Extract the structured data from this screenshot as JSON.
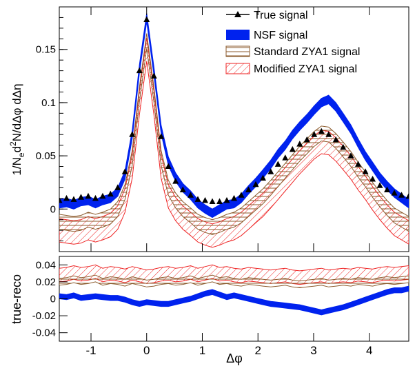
{
  "chart_data": [
    {
      "type": "line",
      "xlabel": "Δφ",
      "ylabel": "1/N_e d²N/dΔφ dΔη",
      "xlim": [
        -1.57,
        4.71
      ],
      "ylim": [
        -0.04,
        0.19
      ],
      "yticks": [
        "0",
        "0.05",
        "0.1",
        "0.15"
      ],
      "xticks": [
        "-1",
        "0",
        "1",
        "2",
        "3",
        "4"
      ],
      "legend_position": "top-right",
      "x": [
        -1.57,
        -1.44,
        -1.31,
        -1.18,
        -1.05,
        -0.92,
        -0.79,
        -0.65,
        -0.52,
        -0.39,
        -0.26,
        -0.13,
        0.0,
        0.13,
        0.26,
        0.39,
        0.52,
        0.65,
        0.79,
        0.92,
        1.05,
        1.18,
        1.31,
        1.44,
        1.57,
        1.7,
        1.83,
        1.96,
        2.09,
        2.23,
        2.36,
        2.49,
        2.62,
        2.75,
        2.88,
        3.01,
        3.14,
        3.27,
        3.4,
        3.53,
        3.67,
        3.8,
        3.93,
        4.06,
        4.19,
        4.32,
        4.45,
        4.58,
        4.71
      ],
      "series": [
        {
          "name": "True signal",
          "style": "markers",
          "color": "#000000",
          "values": [
            0.008,
            0.01,
            0.009,
            0.011,
            0.012,
            0.01,
            0.012,
            0.014,
            0.02,
            0.035,
            0.07,
            0.13,
            0.178,
            0.125,
            0.068,
            0.04,
            0.026,
            0.018,
            0.013,
            0.009,
            0.008,
            0.007,
            0.007,
            0.008,
            0.01,
            0.013,
            0.018,
            0.023,
            0.029,
            0.035,
            0.042,
            0.048,
            0.056,
            0.061,
            0.065,
            0.07,
            0.073,
            0.07,
            0.065,
            0.058,
            0.05,
            0.042,
            0.035,
            0.028,
            0.022,
            0.018,
            0.015,
            0.013,
            0.012
          ]
        },
        {
          "name": "NSF signal",
          "style": "band",
          "color": "#0022ee",
          "values": [
            0.005,
            0.006,
            0.004,
            0.007,
            0.008,
            0.005,
            0.008,
            0.01,
            0.016,
            0.032,
            0.07,
            0.132,
            0.18,
            0.13,
            0.075,
            0.045,
            0.03,
            0.02,
            0.013,
            0.005,
            0.0,
            -0.004,
            0.0,
            0.004,
            0.005,
            0.01,
            0.018,
            0.025,
            0.033,
            0.042,
            0.052,
            0.06,
            0.07,
            0.078,
            0.085,
            0.093,
            0.1,
            0.103,
            0.096,
            0.086,
            0.075,
            0.062,
            0.05,
            0.04,
            0.03,
            0.022,
            0.015,
            0.01,
            0.005
          ]
        },
        {
          "name": "Standard ZYA1 signal",
          "style": "hatched-band",
          "color": "#8b5a2b",
          "values": [
            -0.012,
            -0.013,
            -0.014,
            -0.013,
            -0.01,
            -0.012,
            -0.01,
            -0.007,
            0.0,
            0.016,
            0.048,
            0.108,
            0.158,
            0.108,
            0.048,
            0.02,
            0.008,
            0.0,
            -0.006,
            -0.012,
            -0.015,
            -0.017,
            -0.015,
            -0.012,
            -0.01,
            -0.006,
            0.0,
            0.006,
            0.012,
            0.02,
            0.028,
            0.036,
            0.044,
            0.052,
            0.059,
            0.066,
            0.071,
            0.07,
            0.064,
            0.056,
            0.047,
            0.037,
            0.028,
            0.018,
            0.009,
            0.001,
            -0.006,
            -0.01,
            -0.014
          ]
        },
        {
          "name": "Modified ZYA1 signal",
          "style": "hatched-band",
          "color": "#ee2222",
          "values": [
            -0.02,
            -0.021,
            -0.022,
            -0.021,
            -0.018,
            -0.02,
            -0.018,
            -0.015,
            -0.008,
            0.008,
            0.04,
            0.1,
            0.15,
            0.1,
            0.04,
            0.012,
            0.0,
            -0.008,
            -0.014,
            -0.02,
            -0.023,
            -0.025,
            -0.023,
            -0.02,
            -0.018,
            -0.014,
            -0.008,
            -0.002,
            0.004,
            0.012,
            0.02,
            0.028,
            0.036,
            0.044,
            0.051,
            0.058,
            0.063,
            0.062,
            0.056,
            0.048,
            0.039,
            0.029,
            0.02,
            0.01,
            0.001,
            -0.007,
            -0.014,
            -0.018,
            -0.022
          ]
        }
      ]
    },
    {
      "type": "line",
      "ylabel": "true-reco",
      "ylim": [
        -0.05,
        0.05
      ],
      "yticks": [
        "0.04",
        "0.02",
        "0",
        "-0.02",
        "-0.04"
      ],
      "x": [
        -1.57,
        -1.44,
        -1.31,
        -1.18,
        -1.05,
        -0.92,
        -0.79,
        -0.65,
        -0.52,
        -0.39,
        -0.26,
        -0.13,
        0.0,
        0.13,
        0.26,
        0.39,
        0.52,
        0.65,
        0.79,
        0.92,
        1.05,
        1.18,
        1.31,
        1.44,
        1.57,
        1.7,
        1.83,
        1.96,
        2.09,
        2.23,
        2.36,
        2.49,
        2.62,
        2.75,
        2.88,
        3.01,
        3.14,
        3.27,
        3.4,
        3.53,
        3.67,
        3.8,
        3.93,
        4.06,
        4.19,
        4.32,
        4.45,
        4.58,
        4.71
      ],
      "series": [
        {
          "name": "NSF signal",
          "style": "band",
          "color": "#0022ee",
          "values": [
            0.003,
            0.002,
            0.004,
            0.001,
            0.002,
            0.003,
            0.002,
            0.001,
            0.001,
            -0.001,
            -0.004,
            -0.006,
            -0.004,
            -0.005,
            -0.006,
            -0.006,
            -0.004,
            -0.002,
            0.0,
            0.003,
            0.006,
            0.008,
            0.005,
            0.002,
            0.004,
            0.002,
            0.0,
            -0.002,
            -0.004,
            -0.006,
            -0.007,
            -0.008,
            -0.009,
            -0.01,
            -0.012,
            -0.014,
            -0.016,
            -0.014,
            -0.012,
            -0.01,
            -0.007,
            -0.004,
            -0.001,
            0.002,
            0.005,
            0.008,
            0.01,
            0.01,
            0.012
          ]
        },
        {
          "name": "Standard ZYA1 signal",
          "style": "hatched-band",
          "color": "#8b5a2b",
          "values": [
            0.02,
            0.021,
            0.023,
            0.021,
            0.022,
            0.024,
            0.02,
            0.022,
            0.021,
            0.019,
            0.022,
            0.02,
            0.018,
            0.019,
            0.021,
            0.022,
            0.02,
            0.021,
            0.023,
            0.02,
            0.022,
            0.024,
            0.021,
            0.022,
            0.02,
            0.019,
            0.021,
            0.02,
            0.019,
            0.018,
            0.019,
            0.02,
            0.018,
            0.017,
            0.018,
            0.019,
            0.02,
            0.018,
            0.019,
            0.02,
            0.019,
            0.021,
            0.02,
            0.019,
            0.021,
            0.022,
            0.021,
            0.022,
            0.023
          ]
        },
        {
          "name": "Modified ZYA1 signal",
          "style": "hatched-band",
          "color": "#ee2222",
          "values": [
            0.028,
            0.029,
            0.031,
            0.029,
            0.03,
            0.032,
            0.028,
            0.03,
            0.029,
            0.027,
            0.03,
            0.028,
            0.026,
            0.027,
            0.029,
            0.03,
            0.028,
            0.029,
            0.031,
            0.028,
            0.03,
            0.032,
            0.029,
            0.03,
            0.028,
            0.027,
            0.029,
            0.028,
            0.027,
            0.026,
            0.027,
            0.028,
            0.026,
            0.025,
            0.026,
            0.027,
            0.028,
            0.026,
            0.027,
            0.028,
            0.027,
            0.029,
            0.028,
            0.027,
            0.029,
            0.03,
            0.029,
            0.03,
            0.031
          ]
        }
      ]
    }
  ],
  "legend": [
    {
      "label": "True signal"
    },
    {
      "label": "NSF signal"
    },
    {
      "label": "Standard ZYA1 signal"
    },
    {
      "label": "Modified ZYA1 signal"
    }
  ],
  "labels": {
    "ylabel_main_prefix": "1/N",
    "ylabel_main_sub": "e",
    "ylabel_main_mid": "d",
    "ylabel_main_sup": "2",
    "ylabel_main_rest": "N/dΔφ dΔη",
    "ylabel_ratio": "true-reco",
    "xlabel": "Δφ"
  }
}
